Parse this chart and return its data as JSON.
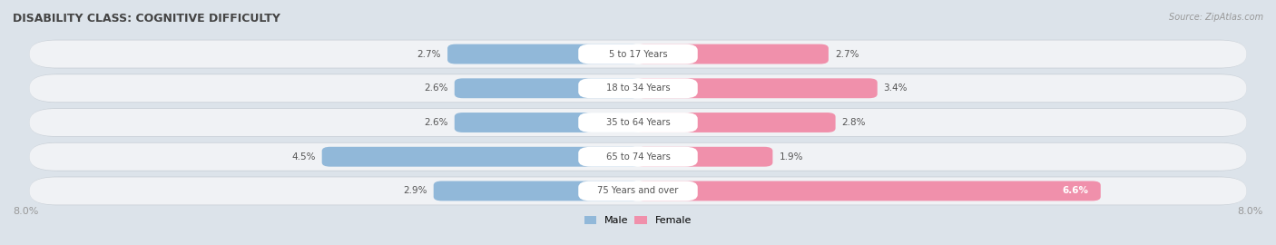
{
  "title": "DISABILITY CLASS: COGNITIVE DIFFICULTY",
  "source": "Source: ZipAtlas.com",
  "categories": [
    "5 to 17 Years",
    "18 to 34 Years",
    "35 to 64 Years",
    "65 to 74 Years",
    "75 Years and over"
  ],
  "male_values": [
    2.7,
    2.6,
    2.6,
    4.5,
    2.9
  ],
  "female_values": [
    2.7,
    3.4,
    2.8,
    1.9,
    6.6
  ],
  "x_max": 8.0,
  "male_color": "#91b8d9",
  "female_color": "#f090ab",
  "male_label": "Male",
  "female_label": "Female",
  "bg_color": "#dce3ea",
  "row_inner_color": "#f0f2f5",
  "row_shadow_color": "#c8cfd6",
  "title_color": "#444444",
  "center_label_color": "#555555",
  "value_color": "#555555",
  "axis_label_color": "#999999"
}
